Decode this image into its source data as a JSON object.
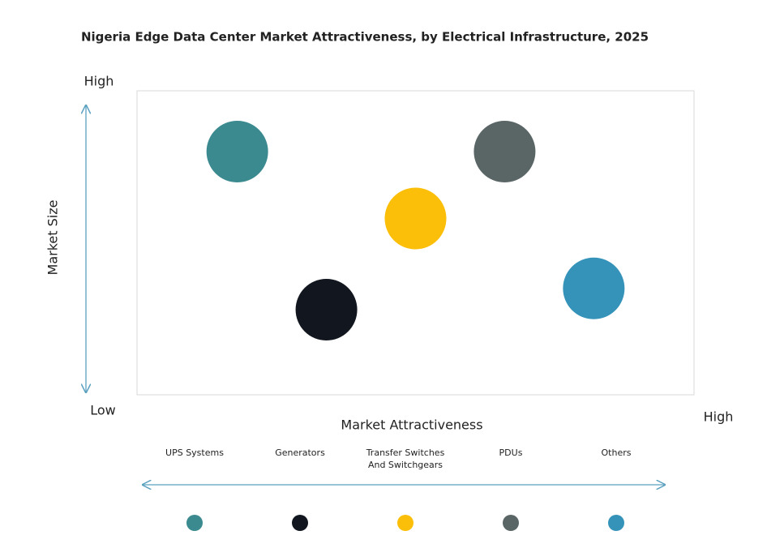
{
  "chart_data": {
    "type": "scatter",
    "title": "Nigeria Edge Data Center Market Attractiveness,  by Electrical Infrastructure,  2025",
    "x_label": "Market Attractiveness",
    "y_label": "Market Size",
    "xlim": [
      0,
      100
    ],
    "ylim": [
      0,
      100
    ],
    "xticks": [
      {
        "value": 100,
        "label": "High"
      }
    ],
    "yticks": [
      {
        "value": 0,
        "label": "Low"
      },
      {
        "value": 100,
        "label": "High"
      }
    ],
    "grid": false,
    "legend": "bottom",
    "series": [
      {
        "name": "UPS Systems",
        "color": "#3a8a8f",
        "x": [
          18
        ],
        "values": [
          80
        ]
      },
      {
        "name": "Generators",
        "color": "#12171f",
        "x": [
          34
        ],
        "values": [
          28
        ]
      },
      {
        "name": "Transfer Switches And Switchgears",
        "color": "#fbbf0a",
        "x": [
          50
        ],
        "values": [
          58
        ]
      },
      {
        "name": "PDUs",
        "color": "#5a6566",
        "x": [
          66
        ],
        "values": [
          80
        ]
      },
      {
        "name": "Others",
        "color": "#3593ba",
        "x": [
          82
        ],
        "values": [
          35
        ]
      }
    ]
  }
}
